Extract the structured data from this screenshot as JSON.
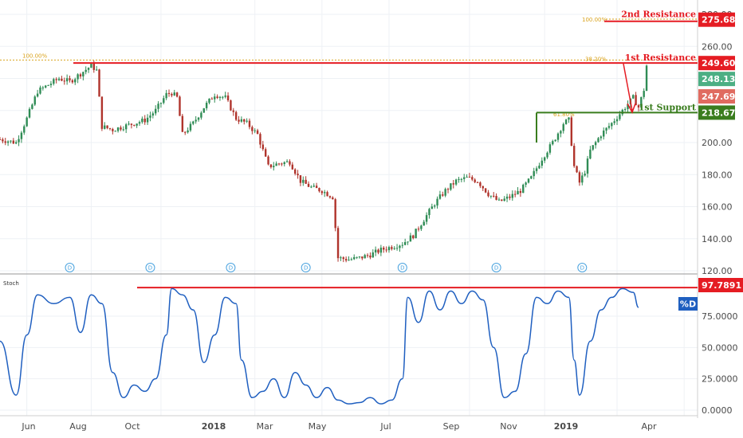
{
  "chart_data": [
    {
      "type": "candlestick",
      "ylim": [
        120,
        285
      ],
      "yticks": [
        "120.00",
        "140.00",
        "160.00",
        "180.00",
        "200.00",
        "220.00",
        "240.00",
        "260.00",
        "280.00"
      ],
      "price_path": [
        [
          0,
          202
        ],
        [
          6,
          200
        ],
        [
          10,
          215
        ],
        [
          14,
          232
        ],
        [
          18,
          236
        ],
        [
          22,
          240
        ],
        [
          26,
          238
        ],
        [
          30,
          243
        ],
        [
          34,
          248
        ],
        [
          36,
          245
        ],
        [
          38,
          210
        ],
        [
          42,
          208
        ],
        [
          46,
          210
        ],
        [
          50,
          212
        ],
        [
          54,
          214
        ],
        [
          58,
          220
        ],
        [
          62,
          230
        ],
        [
          64,
          231
        ],
        [
          66,
          228
        ],
        [
          68,
          205
        ],
        [
          72,
          212
        ],
        [
          76,
          222
        ],
        [
          80,
          230
        ],
        [
          84,
          228
        ],
        [
          88,
          215
        ],
        [
          92,
          212
        ],
        [
          96,
          205
        ],
        [
          100,
          185
        ],
        [
          104,
          187
        ],
        [
          108,
          188
        ],
        [
          112,
          176
        ],
        [
          116,
          172
        ],
        [
          120,
          170
        ],
        [
          124,
          166
        ],
        [
          126,
          128
        ],
        [
          130,
          127
        ],
        [
          134,
          128
        ],
        [
          138,
          130
        ],
        [
          142,
          133
        ],
        [
          146,
          135
        ],
        [
          150,
          137
        ],
        [
          154,
          142
        ],
        [
          158,
          152
        ],
        [
          162,
          162
        ],
        [
          166,
          170
        ],
        [
          170,
          176
        ],
        [
          174,
          178
        ],
        [
          178,
          176
        ],
        [
          182,
          168
        ],
        [
          186,
          163
        ],
        [
          190,
          166
        ],
        [
          194,
          170
        ],
        [
          198,
          178
        ],
        [
          202,
          190
        ],
        [
          206,
          200
        ],
        [
          210,
          212
        ],
        [
          212,
          214
        ],
        [
          214,
          185
        ],
        [
          216,
          175
        ],
        [
          218,
          182
        ],
        [
          220,
          195
        ],
        [
          224,
          205
        ],
        [
          228,
          212
        ],
        [
          232,
          220
        ],
        [
          236,
          228
        ],
        [
          238,
          222
        ],
        [
          240,
          233
        ],
        [
          241,
          248
        ]
      ],
      "levels": [
        {
          "name": "2nd Resistance",
          "label": "275.68",
          "y": 275.68,
          "color": "#e51c23"
        },
        {
          "name": "1st Resistance",
          "label": "249.60",
          "y": 249.6,
          "color": "#e51c23"
        },
        {
          "name": "1st Support",
          "label": "218.67",
          "y": 218.67,
          "color": "#3a7d1e"
        }
      ],
      "price_tags": [
        {
          "label": "248.13",
          "y": 248.13,
          "color": "#4caf84"
        },
        {
          "label": "247.69",
          "y": 247.69,
          "color": "#e06b60"
        }
      ],
      "fib_labels": [
        "100.00%",
        "100.00%",
        "61.80%",
        "38.20%"
      ],
      "dividend_markers": [
        "D",
        "D",
        "D",
        "D",
        "D",
        "D",
        "D"
      ]
    },
    {
      "type": "line",
      "title": "Stoch",
      "series_label": "%D",
      "ylim": [
        0,
        100
      ],
      "yticks": [
        "0.0000",
        "25.0000",
        "50.0000",
        "75.0000"
      ],
      "level": {
        "label": "97.7891",
        "y": 97.7891,
        "color": "#e51c23"
      },
      "values": [
        [
          0,
          55
        ],
        [
          6,
          12
        ],
        [
          10,
          60
        ],
        [
          14,
          92
        ],
        [
          20,
          85
        ],
        [
          26,
          90
        ],
        [
          30,
          62
        ],
        [
          34,
          92
        ],
        [
          38,
          85
        ],
        [
          42,
          30
        ],
        [
          46,
          10
        ],
        [
          50,
          20
        ],
        [
          54,
          15
        ],
        [
          58,
          25
        ],
        [
          62,
          60
        ],
        [
          64,
          97
        ],
        [
          68,
          92
        ],
        [
          72,
          80
        ],
        [
          76,
          38
        ],
        [
          80,
          60
        ],
        [
          84,
          90
        ],
        [
          88,
          85
        ],
        [
          90,
          40
        ],
        [
          94,
          10
        ],
        [
          98,
          15
        ],
        [
          102,
          25
        ],
        [
          106,
          10
        ],
        [
          110,
          30
        ],
        [
          114,
          20
        ],
        [
          118,
          10
        ],
        [
          122,
          18
        ],
        [
          126,
          8
        ],
        [
          130,
          5
        ],
        [
          134,
          6
        ],
        [
          138,
          10
        ],
        [
          142,
          5
        ],
        [
          146,
          8
        ],
        [
          150,
          25
        ],
        [
          152,
          90
        ],
        [
          156,
          70
        ],
        [
          160,
          95
        ],
        [
          164,
          80
        ],
        [
          168,
          95
        ],
        [
          172,
          85
        ],
        [
          176,
          95
        ],
        [
          180,
          88
        ],
        [
          184,
          50
        ],
        [
          188,
          10
        ],
        [
          192,
          15
        ],
        [
          196,
          45
        ],
        [
          200,
          90
        ],
        [
          204,
          85
        ],
        [
          208,
          95
        ],
        [
          212,
          90
        ],
        [
          214,
          40
        ],
        [
          216,
          12
        ],
        [
          220,
          55
        ],
        [
          224,
          80
        ],
        [
          228,
          90
        ],
        [
          232,
          97
        ],
        [
          236,
          94
        ],
        [
          238,
          82
        ]
      ]
    }
  ],
  "x_labels": [
    "Jun",
    "Aug",
    "Oct",
    "2018",
    "Mar",
    "May",
    "Jul",
    "Sep",
    "Nov",
    "2019",
    "Apr"
  ]
}
